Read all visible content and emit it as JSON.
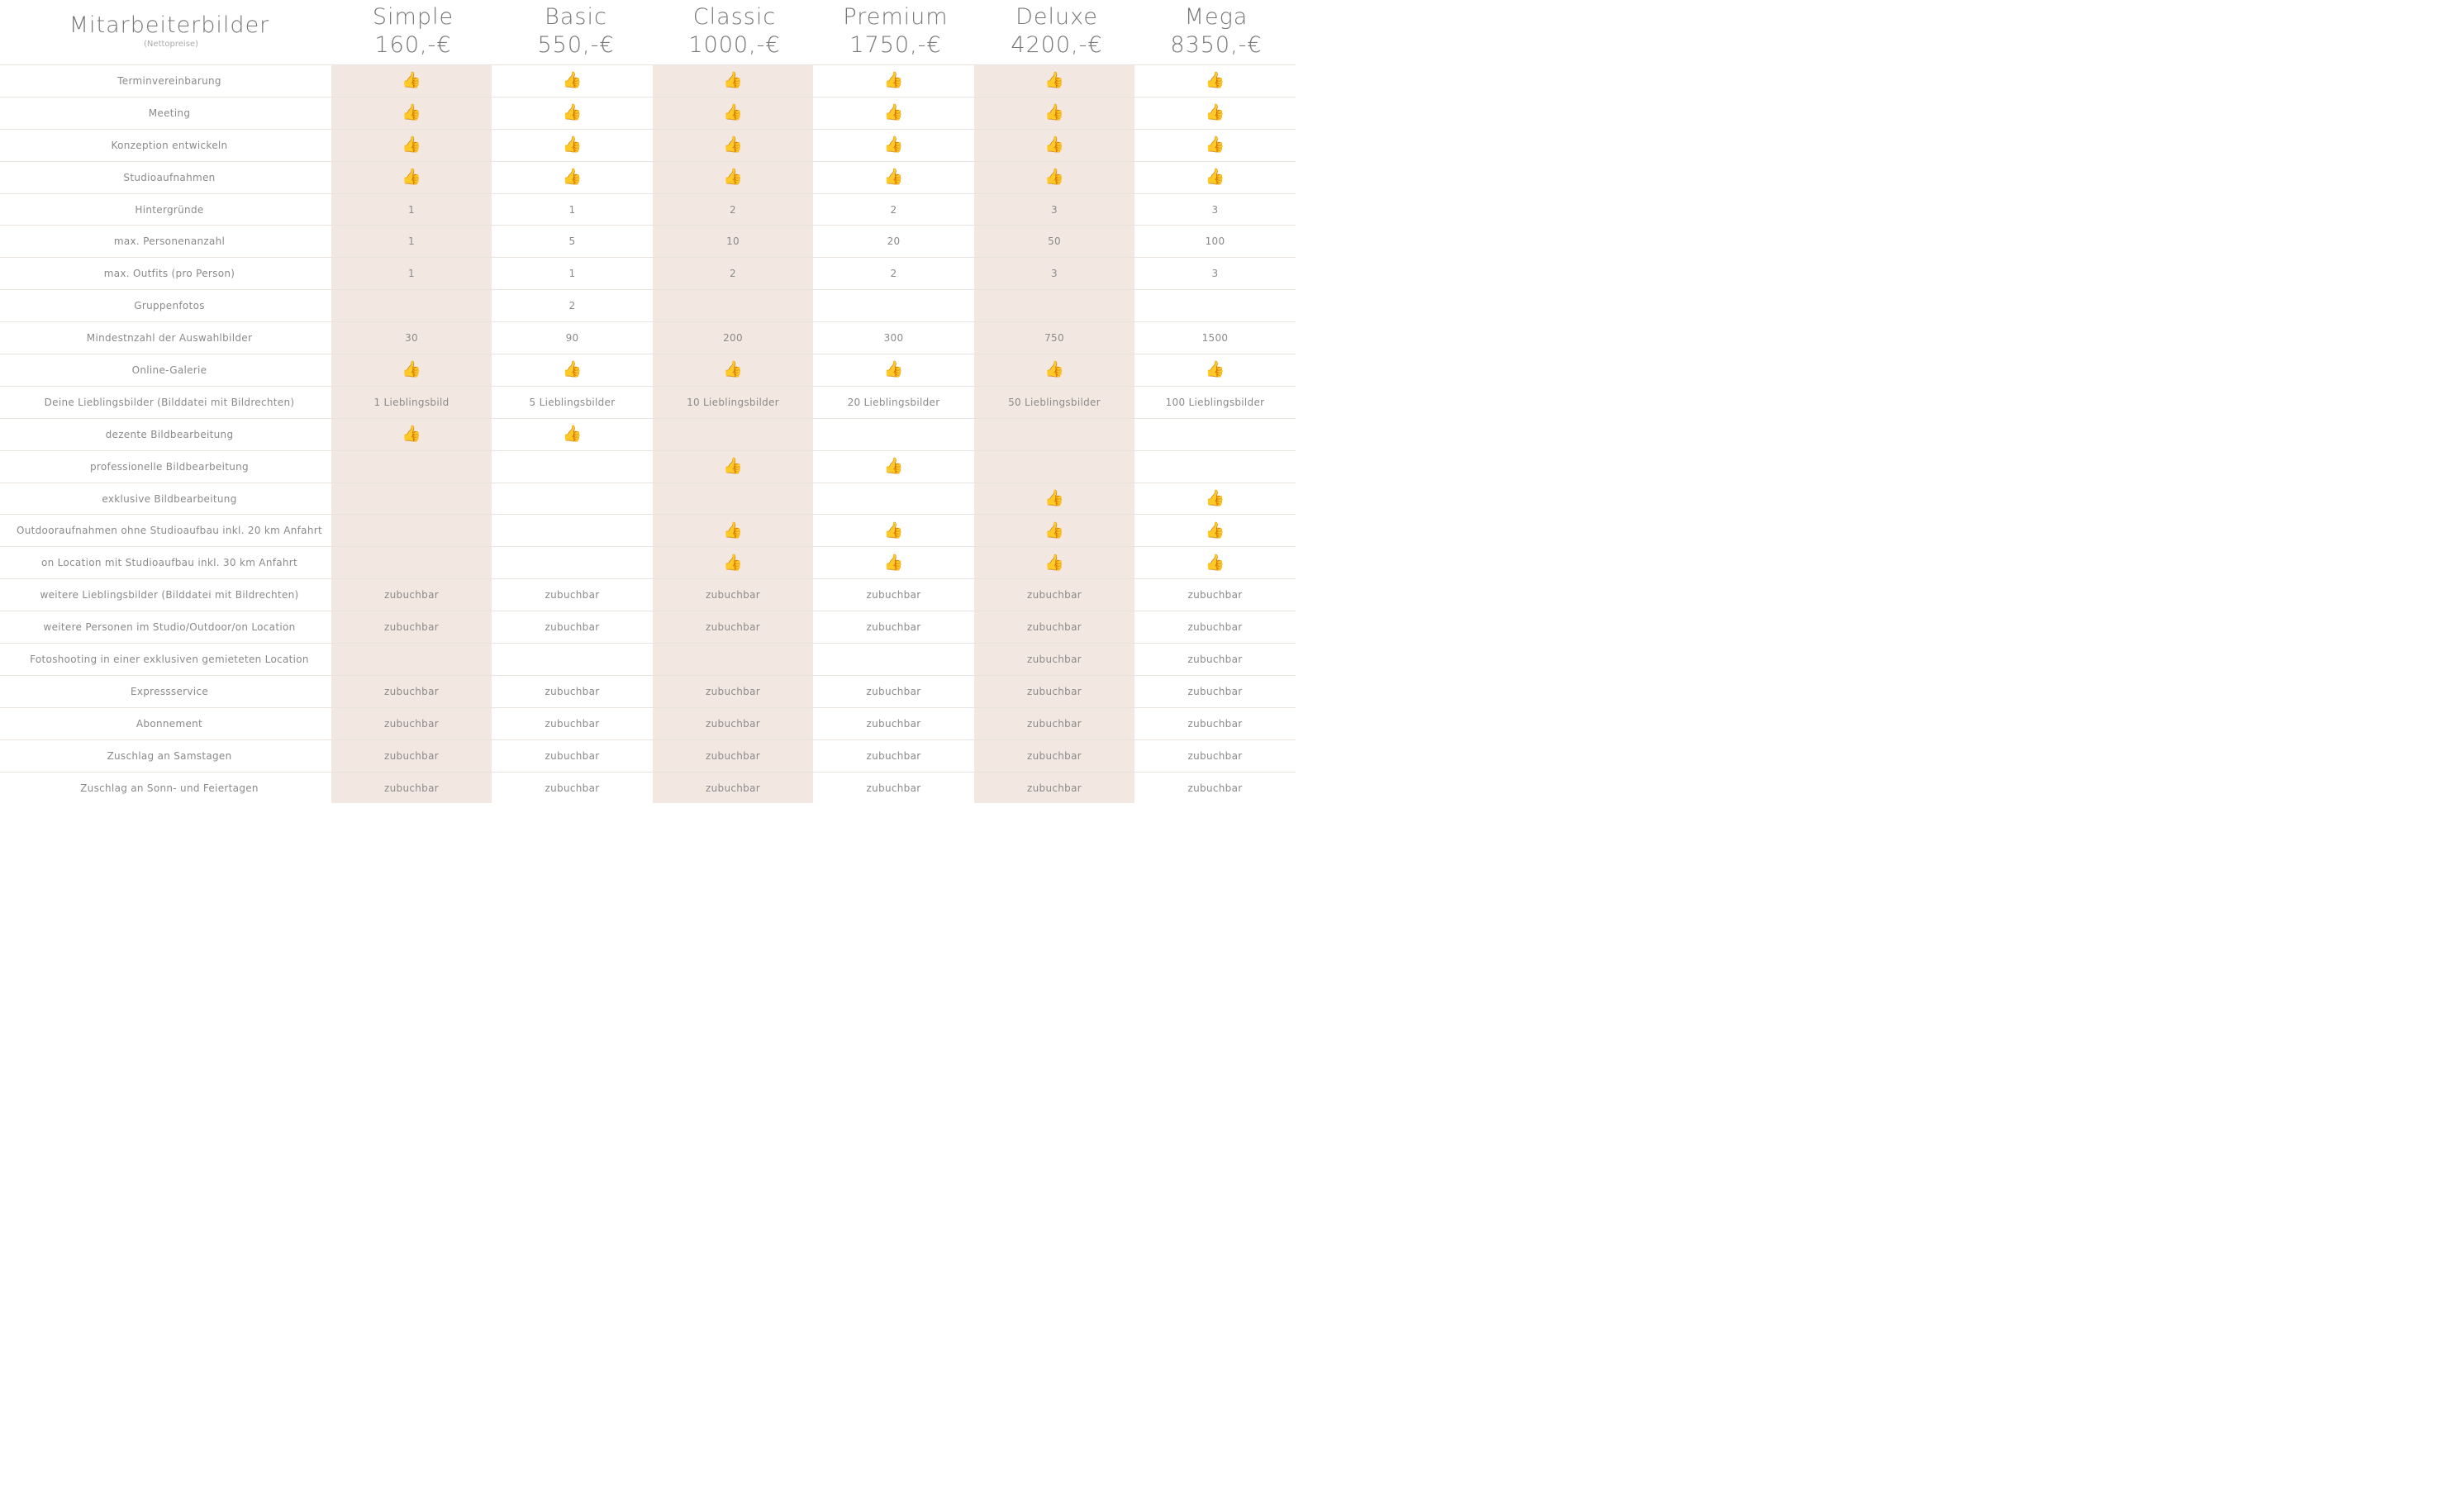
{
  "header": {
    "title": "Mitarbeiterbilder",
    "subtitle": "(Nettopreise)"
  },
  "plans": [
    {
      "name": "Simple",
      "price": "160,-€"
    },
    {
      "name": "Basic",
      "price": "550,-€"
    },
    {
      "name": "Classic",
      "price": "1000,-€"
    },
    {
      "name": "Premium",
      "price": "1750,-€"
    },
    {
      "name": "Deluxe",
      "price": "4200,-€"
    },
    {
      "name": "Mega",
      "price": "8350,-€"
    }
  ],
  "icons": {
    "included": "thumbs-up-icon",
    "included_glyph": "👍"
  },
  "colors": {
    "shaded_column": "#f3e8e1",
    "text": "#8a8a8a",
    "thumb": "#f5b82e"
  },
  "rows": [
    {
      "label": "Terminvereinbarung",
      "cells": [
        "✓",
        "✓",
        "✓",
        "✓",
        "✓",
        "✓"
      ]
    },
    {
      "label": "Meeting",
      "cells": [
        "✓",
        "✓",
        "✓",
        "✓",
        "✓",
        "✓"
      ]
    },
    {
      "label": "Konzeption entwickeln",
      "cells": [
        "✓",
        "✓",
        "✓",
        "✓",
        "✓",
        "✓"
      ]
    },
    {
      "label": "Studioaufnahmen",
      "cells": [
        "✓",
        "✓",
        "✓",
        "✓",
        "✓",
        "✓"
      ]
    },
    {
      "label": "Hintergründe",
      "cells": [
        "1",
        "1",
        "2",
        "2",
        "3",
        "3"
      ]
    },
    {
      "label": "max. Personenanzahl",
      "cells": [
        "1",
        "5",
        "10",
        "20",
        "50",
        "100"
      ]
    },
    {
      "label": "max. Outfits (pro Person)",
      "cells": [
        "1",
        "1",
        "2",
        "2",
        "3",
        "3"
      ]
    },
    {
      "label": "Gruppenfotos",
      "cells": [
        "",
        "2",
        "",
        "",
        "",
        ""
      ]
    },
    {
      "label": "Mindestnzahl der Auswahlbilder",
      "cells": [
        "30",
        "90",
        "200",
        "300",
        "750",
        "1500"
      ]
    },
    {
      "label": "Online-Galerie",
      "cells": [
        "✓",
        "✓",
        "✓",
        "✓",
        "✓",
        "✓"
      ]
    },
    {
      "label": "Deine Lieblingsbilder (Bilddatei mit Bildrechten)",
      "cells": [
        "1 Lieblingsbild",
        "5 Lieblingsbilder",
        "10 Lieblingsbilder",
        "20 Lieblingsbilder",
        "50 Lieblingsbilder",
        "100 Lieblingsbilder"
      ]
    },
    {
      "label": "dezente Bildbearbeitung",
      "cells": [
        "✓",
        "✓",
        "",
        "",
        "",
        ""
      ]
    },
    {
      "label": "professionelle Bildbearbeitung",
      "cells": [
        "",
        "",
        "✓",
        "✓",
        "",
        ""
      ]
    },
    {
      "label": "exklusive Bildbearbeitung",
      "cells": [
        "",
        "",
        "",
        "",
        "✓",
        "✓"
      ]
    },
    {
      "label": "Outdooraufnahmen ohne Studioaufbau inkl. 20 km Anfahrt",
      "cells": [
        "",
        "",
        "✓",
        "✓",
        "✓",
        "✓"
      ]
    },
    {
      "label": "on Location mit Studioaufbau inkl. 30 km Anfahrt",
      "cells": [
        "",
        "",
        "✓",
        "✓",
        "✓",
        "✓"
      ]
    },
    {
      "label": "weitere Lieblingsbilder (Bilddatei mit Bildrechten)",
      "cells": [
        "zubuchbar",
        "zubuchbar",
        "zubuchbar",
        "zubuchbar",
        "zubuchbar",
        "zubuchbar"
      ]
    },
    {
      "label": "weitere Personen im Studio/Outdoor/on Location",
      "cells": [
        "zubuchbar",
        "zubuchbar",
        "zubuchbar",
        "zubuchbar",
        "zubuchbar",
        "zubuchbar"
      ]
    },
    {
      "label": "Fotoshooting in einer exklusiven gemieteten Location",
      "cells": [
        "",
        "",
        "",
        "",
        "zubuchbar",
        "zubuchbar"
      ]
    },
    {
      "label": "Expressservice",
      "cells": [
        "zubuchbar",
        "zubuchbar",
        "zubuchbar",
        "zubuchbar",
        "zubuchbar",
        "zubuchbar"
      ]
    },
    {
      "label": "Abonnement",
      "cells": [
        "zubuchbar",
        "zubuchbar",
        "zubuchbar",
        "zubuchbar",
        "zubuchbar",
        "zubuchbar"
      ]
    },
    {
      "label": "Zuschlag an Samstagen",
      "cells": [
        "zubuchbar",
        "zubuchbar",
        "zubuchbar",
        "zubuchbar",
        "zubuchbar",
        "zubuchbar"
      ]
    },
    {
      "label": "Zuschlag an Sonn- und Feiertagen",
      "cells": [
        "zubuchbar",
        "zubuchbar",
        "zubuchbar",
        "zubuchbar",
        "zubuchbar",
        "zubuchbar"
      ]
    }
  ]
}
